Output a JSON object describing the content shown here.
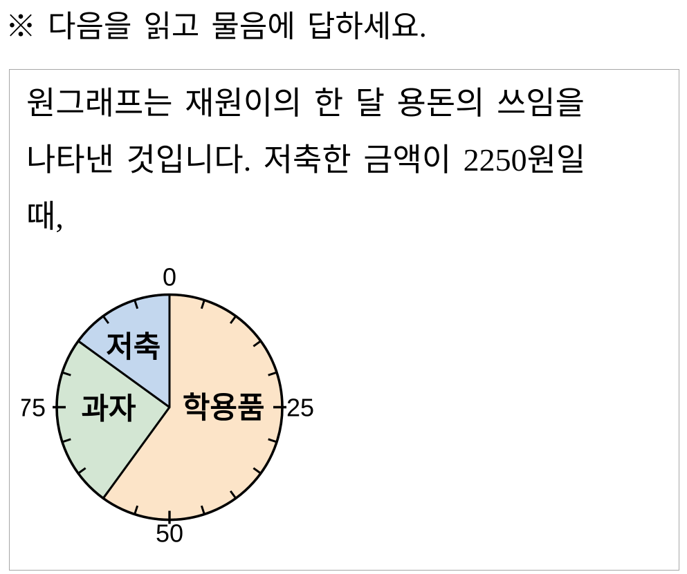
{
  "page": {
    "background": "#ffffff",
    "instruction": "※ 다음을 읽고 물음에 답하세요."
  },
  "problem_box": {
    "border_color": "#a6a6a6",
    "lines": [
      "원그래프는 재원이의 한 달 용돈의 쓰임을",
      "나타낸 것입니다. 저축한 금액이 2250원일",
      "때,"
    ]
  },
  "chart_data": {
    "type": "pie",
    "unit": "percent",
    "start_at_top": true,
    "clockwise": true,
    "outline_color": "#000000",
    "label_color": "#000000",
    "categories": [
      "학용품",
      "과자",
      "저축"
    ],
    "values": [
      60,
      25,
      15
    ],
    "slices": [
      {
        "label": "학용품",
        "value": 60,
        "color": "#fce4c8",
        "label_offset": [
          0.48,
          0.0
        ]
      },
      {
        "label": "과자",
        "value": 25,
        "color": "#d3e6d3",
        "label_offset": [
          -0.54,
          0.01
        ]
      },
      {
        "label": "저축",
        "value": 15,
        "color": "#c3d7ee",
        "label_offset": [
          -0.32,
          -0.54
        ]
      }
    ],
    "ticks": {
      "minor_interval": 5,
      "labeled": [
        0,
        25,
        50,
        75
      ]
    }
  }
}
